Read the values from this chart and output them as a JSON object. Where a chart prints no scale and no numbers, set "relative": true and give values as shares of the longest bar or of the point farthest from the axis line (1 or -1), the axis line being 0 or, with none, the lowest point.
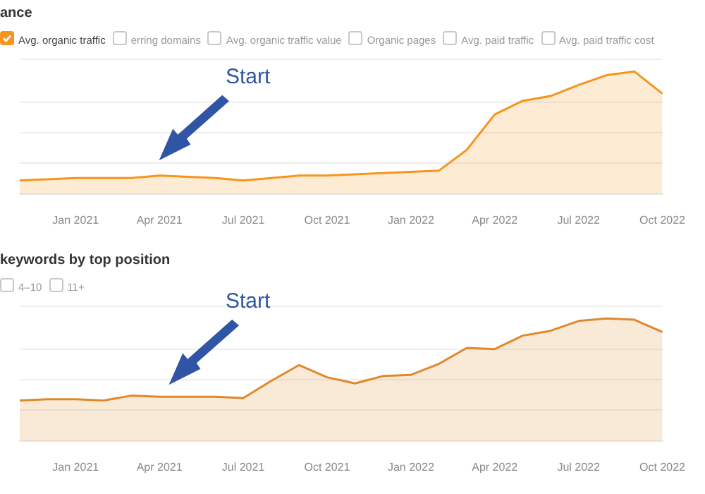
{
  "chart_data": [
    {
      "type": "area",
      "title": "ance",
      "relative": true,
      "grid": "y",
      "legend": "top left",
      "categories": [
        null,
        null,
        "Jan 2021",
        null,
        null,
        "Apr 2021",
        null,
        null,
        "Jul 2021",
        null,
        null,
        "Oct 2021",
        null,
        null,
        "Jan 2022",
        null,
        null,
        "Apr 2022",
        null,
        null,
        "Jul 2022",
        null,
        null,
        "Oct 2022"
      ],
      "series": [
        {
          "name": "Avg. organic traffic",
          "color": "#f7941d",
          "values": [
            0.11,
            0.12,
            0.13,
            0.13,
            0.13,
            0.15,
            0.14,
            0.13,
            0.11,
            0.13,
            0.15,
            0.15,
            0.16,
            0.17,
            0.18,
            0.19,
            0.36,
            0.65,
            0.76,
            0.8,
            0.89,
            0.97,
            1,
            0.82
          ]
        }
      ],
      "annotations": [
        "erring domains",
        "Avg. organic traffic value",
        "Organic pages",
        "Avg. paid traffic",
        "Avg. paid traffic cost",
        "Start"
      ]
    },
    {
      "type": "area",
      "title": "keywords by top position",
      "relative": true,
      "grid": "y",
      "categories": [
        null,
        null,
        "Jan 2021",
        null,
        null,
        "Apr 2021",
        null,
        null,
        "Jul 2021",
        null,
        null,
        "Oct 2021",
        null,
        null,
        "Jan 2022",
        null,
        null,
        "Apr 2022",
        null,
        null,
        "Jul 2022",
        null,
        null,
        "Oct 2022"
      ],
      "series": [
        {
          "color": "#e0892c",
          "values": [
            0.33,
            0.34,
            0.34,
            0.33,
            0.37,
            0.36,
            0.36,
            0.36,
            0.35,
            0.49,
            0.62,
            0.52,
            0.47,
            0.53,
            0.54,
            0.63,
            0.76,
            0.75,
            0.86,
            0.9,
            0.98,
            1,
            0.99,
            0.89
          ]
        }
      ],
      "annotations": [
        "4–10",
        "11+",
        "Start"
      ]
    }
  ]
}
